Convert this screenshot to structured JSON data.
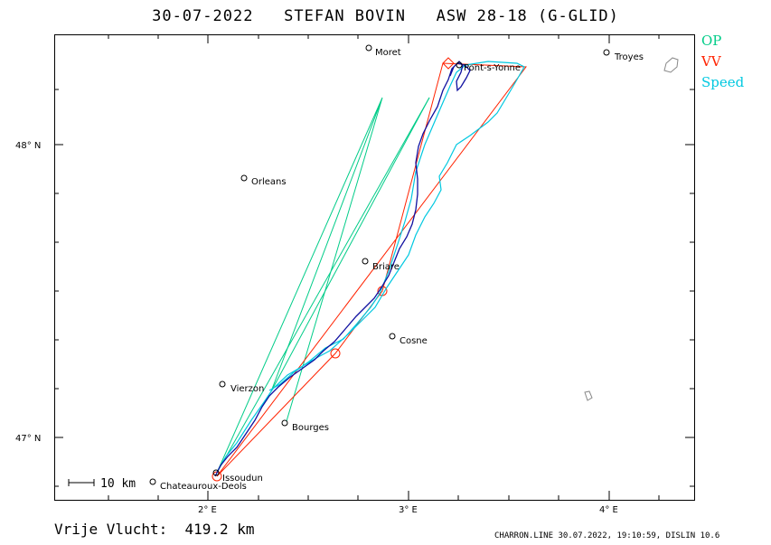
{
  "title": "30-07-2022   STEFAN BOVIN   ASW 28-18 (G-GLID)",
  "legend": [
    {
      "label": "OP",
      "color": "#00cc88"
    },
    {
      "label": "VV",
      "color": "#ff2200"
    },
    {
      "label": "Speed",
      "color": "#00c8e0"
    }
  ],
  "axes": {
    "lon_ticks": [
      "2° E",
      "3° E",
      "4° E"
    ],
    "lat_ticks": [
      "48° N",
      "47° N"
    ]
  },
  "scale_bar": "10 km",
  "towns": [
    "Moret",
    "Troyes",
    "Pont-s-Yonne",
    "Orleans",
    "Briare",
    "Cosne",
    "Vierzon",
    "Bourges",
    "Issoudun",
    "Chateauroux-Deols"
  ],
  "distance": "Vrije Vlucht:  419.2 km",
  "footer": "CHARRON.LINE 30.07.2022, 19:10:59, DISLIN 10.6"
}
